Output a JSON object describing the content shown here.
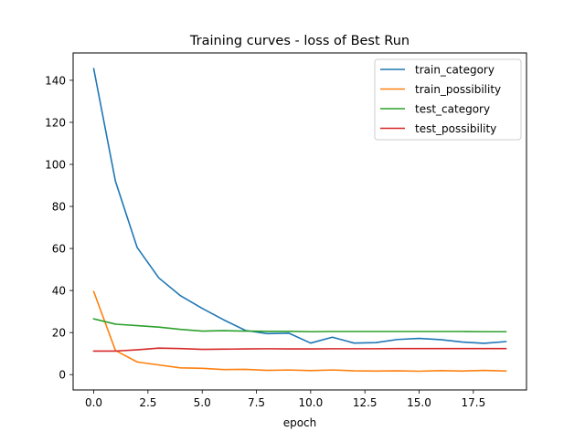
{
  "chart_data": {
    "type": "line",
    "title": "Training curves - loss of Best Run",
    "xlabel": "epoch",
    "ylabel": "",
    "xlim": [
      -0.95,
      19.95
    ],
    "ylim": [
      -7.3,
      153.0
    ],
    "x_ticks": [
      0.0,
      2.5,
      5.0,
      7.5,
      10.0,
      12.5,
      15.0,
      17.5
    ],
    "x_tick_labels": [
      "0.0",
      "2.5",
      "5.0",
      "7.5",
      "10.0",
      "12.5",
      "15.0",
      "17.5"
    ],
    "y_ticks": [
      0,
      20,
      40,
      60,
      80,
      100,
      120,
      140
    ],
    "y_tick_labels": [
      "0",
      "20",
      "40",
      "60",
      "80",
      "100",
      "120",
      "140"
    ],
    "x": [
      0,
      1,
      2,
      3,
      4,
      5,
      6,
      7,
      8,
      9,
      10,
      11,
      12,
      13,
      14,
      15,
      16,
      17,
      18,
      19
    ],
    "legend_position": "top-right",
    "grid": false,
    "series": [
      {
        "name": "train_category",
        "color": "#1f77b4",
        "values": [
          145.5,
          92.0,
          60.5,
          46.0,
          37.5,
          31.5,
          26.0,
          21.0,
          19.5,
          19.7,
          15.0,
          17.8,
          15.0,
          15.2,
          16.7,
          17.2,
          16.6,
          15.5,
          14.9,
          15.7
        ]
      },
      {
        "name": "train_possibility",
        "color": "#ff7f0e",
        "values": [
          39.5,
          11.5,
          6.0,
          4.6,
          3.2,
          3.0,
          2.4,
          2.5,
          2.0,
          2.2,
          1.9,
          2.2,
          1.8,
          1.7,
          1.8,
          1.6,
          1.9,
          1.7,
          2.0,
          1.7
        ]
      },
      {
        "name": "test_category",
        "color": "#2ca02c",
        "values": [
          26.5,
          24.0,
          23.3,
          22.6,
          21.5,
          20.7,
          20.9,
          20.7,
          20.6,
          20.6,
          20.4,
          20.5,
          20.5,
          20.5,
          20.5,
          20.5,
          20.5,
          20.5,
          20.4,
          20.4
        ]
      },
      {
        "name": "test_possibility",
        "color": "#d62728",
        "values": [
          11.2,
          11.2,
          11.8,
          12.6,
          12.4,
          12.0,
          12.1,
          12.2,
          12.3,
          12.2,
          12.2,
          12.3,
          12.3,
          12.3,
          12.4,
          12.4,
          12.4,
          12.4,
          12.4,
          12.4
        ]
      }
    ]
  }
}
